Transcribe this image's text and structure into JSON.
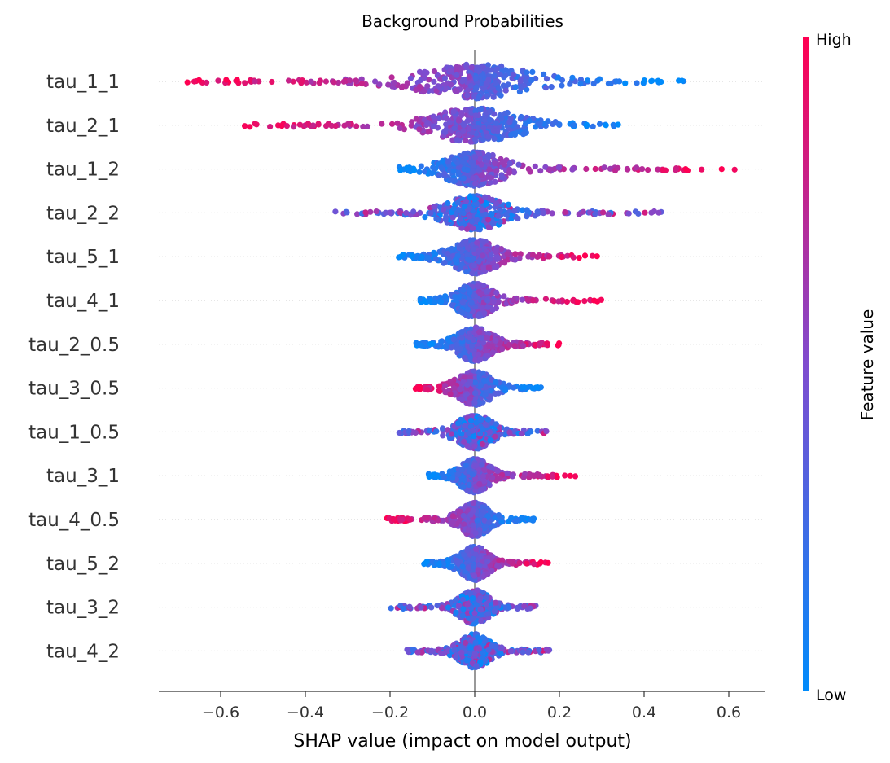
{
  "chart_data": {
    "type": "scatter",
    "subtype": "shap-beeswarm",
    "title": "Background Probabilities",
    "xlabel": "SHAP value (impact on model output)",
    "xlim": [
      -0.75,
      0.68
    ],
    "xticks": [
      {
        "value": -0.6,
        "label": "−0.6"
      },
      {
        "value": -0.4,
        "label": "−0.4"
      },
      {
        "value": -0.2,
        "label": "−0.2"
      },
      {
        "value": 0.0,
        "label": "0.0"
      },
      {
        "value": 0.2,
        "label": "0.2"
      },
      {
        "value": 0.4,
        "label": "0.4"
      },
      {
        "value": 0.6,
        "label": "0.6"
      }
    ],
    "colorbar": {
      "title": "Feature value",
      "high_label": "High",
      "low_label": "Low",
      "high_color": "#ff0052",
      "low_color": "#008bfb"
    },
    "zero_line": true,
    "grid": "dotted-horizontal",
    "features": [
      {
        "name": "tau_1_1",
        "min": -0.68,
        "max": 0.52,
        "spread": 0.19,
        "wneg": 0.55,
        "wpos": 1.0,
        "high_side": "negative"
      },
      {
        "name": "tau_2_1",
        "min": -0.55,
        "max": 0.34,
        "spread": 0.15,
        "wneg": 0.9,
        "wpos": 1.0,
        "high_side": "negative"
      },
      {
        "name": "tau_1_2",
        "min": -0.18,
        "max": 0.62,
        "spread": 0.1,
        "wneg": 1.0,
        "wpos": 0.45,
        "high_side": "positive"
      },
      {
        "name": "tau_2_2",
        "min": -0.33,
        "max": 0.45,
        "spread": 0.1,
        "wneg": 1.0,
        "wpos": 0.7,
        "high_side": "mixed"
      },
      {
        "name": "tau_5_1",
        "min": -0.18,
        "max": 0.3,
        "spread": 0.08,
        "wneg": 1.0,
        "wpos": 0.8,
        "high_side": "positive"
      },
      {
        "name": "tau_4_1",
        "min": -0.13,
        "max": 0.3,
        "spread": 0.06,
        "wneg": 1.0,
        "wpos": 0.9,
        "high_side": "positive"
      },
      {
        "name": "tau_2_0.5",
        "min": -0.14,
        "max": 0.2,
        "spread": 0.06,
        "wneg": 1.0,
        "wpos": 1.0,
        "high_side": "positive"
      },
      {
        "name": "tau_3_0.5",
        "min": -0.14,
        "max": 0.16,
        "spread": 0.06,
        "wneg": 1.0,
        "wpos": 0.8,
        "high_side": "negative"
      },
      {
        "name": "tau_1_0.5",
        "min": -0.18,
        "max": 0.17,
        "spread": 0.06,
        "wneg": 1.0,
        "wpos": 1.0,
        "high_side": "mixed"
      },
      {
        "name": "tau_3_1",
        "min": -0.11,
        "max": 0.24,
        "spread": 0.05,
        "wneg": 1.0,
        "wpos": 1.0,
        "high_side": "positive"
      },
      {
        "name": "tau_4_0.5",
        "min": -0.21,
        "max": 0.14,
        "spread": 0.05,
        "wneg": 1.0,
        "wpos": 0.8,
        "high_side": "negative"
      },
      {
        "name": "tau_5_2",
        "min": -0.12,
        "max": 0.18,
        "spread": 0.05,
        "wneg": 1.0,
        "wpos": 1.0,
        "high_side": "positive"
      },
      {
        "name": "tau_3_2",
        "min": -0.2,
        "max": 0.15,
        "spread": 0.05,
        "wneg": 1.0,
        "wpos": 1.0,
        "high_side": "mixed"
      },
      {
        "name": "tau_4_2",
        "min": -0.16,
        "max": 0.18,
        "spread": 0.05,
        "wneg": 1.0,
        "wpos": 1.0,
        "high_side": "mixed"
      }
    ]
  }
}
